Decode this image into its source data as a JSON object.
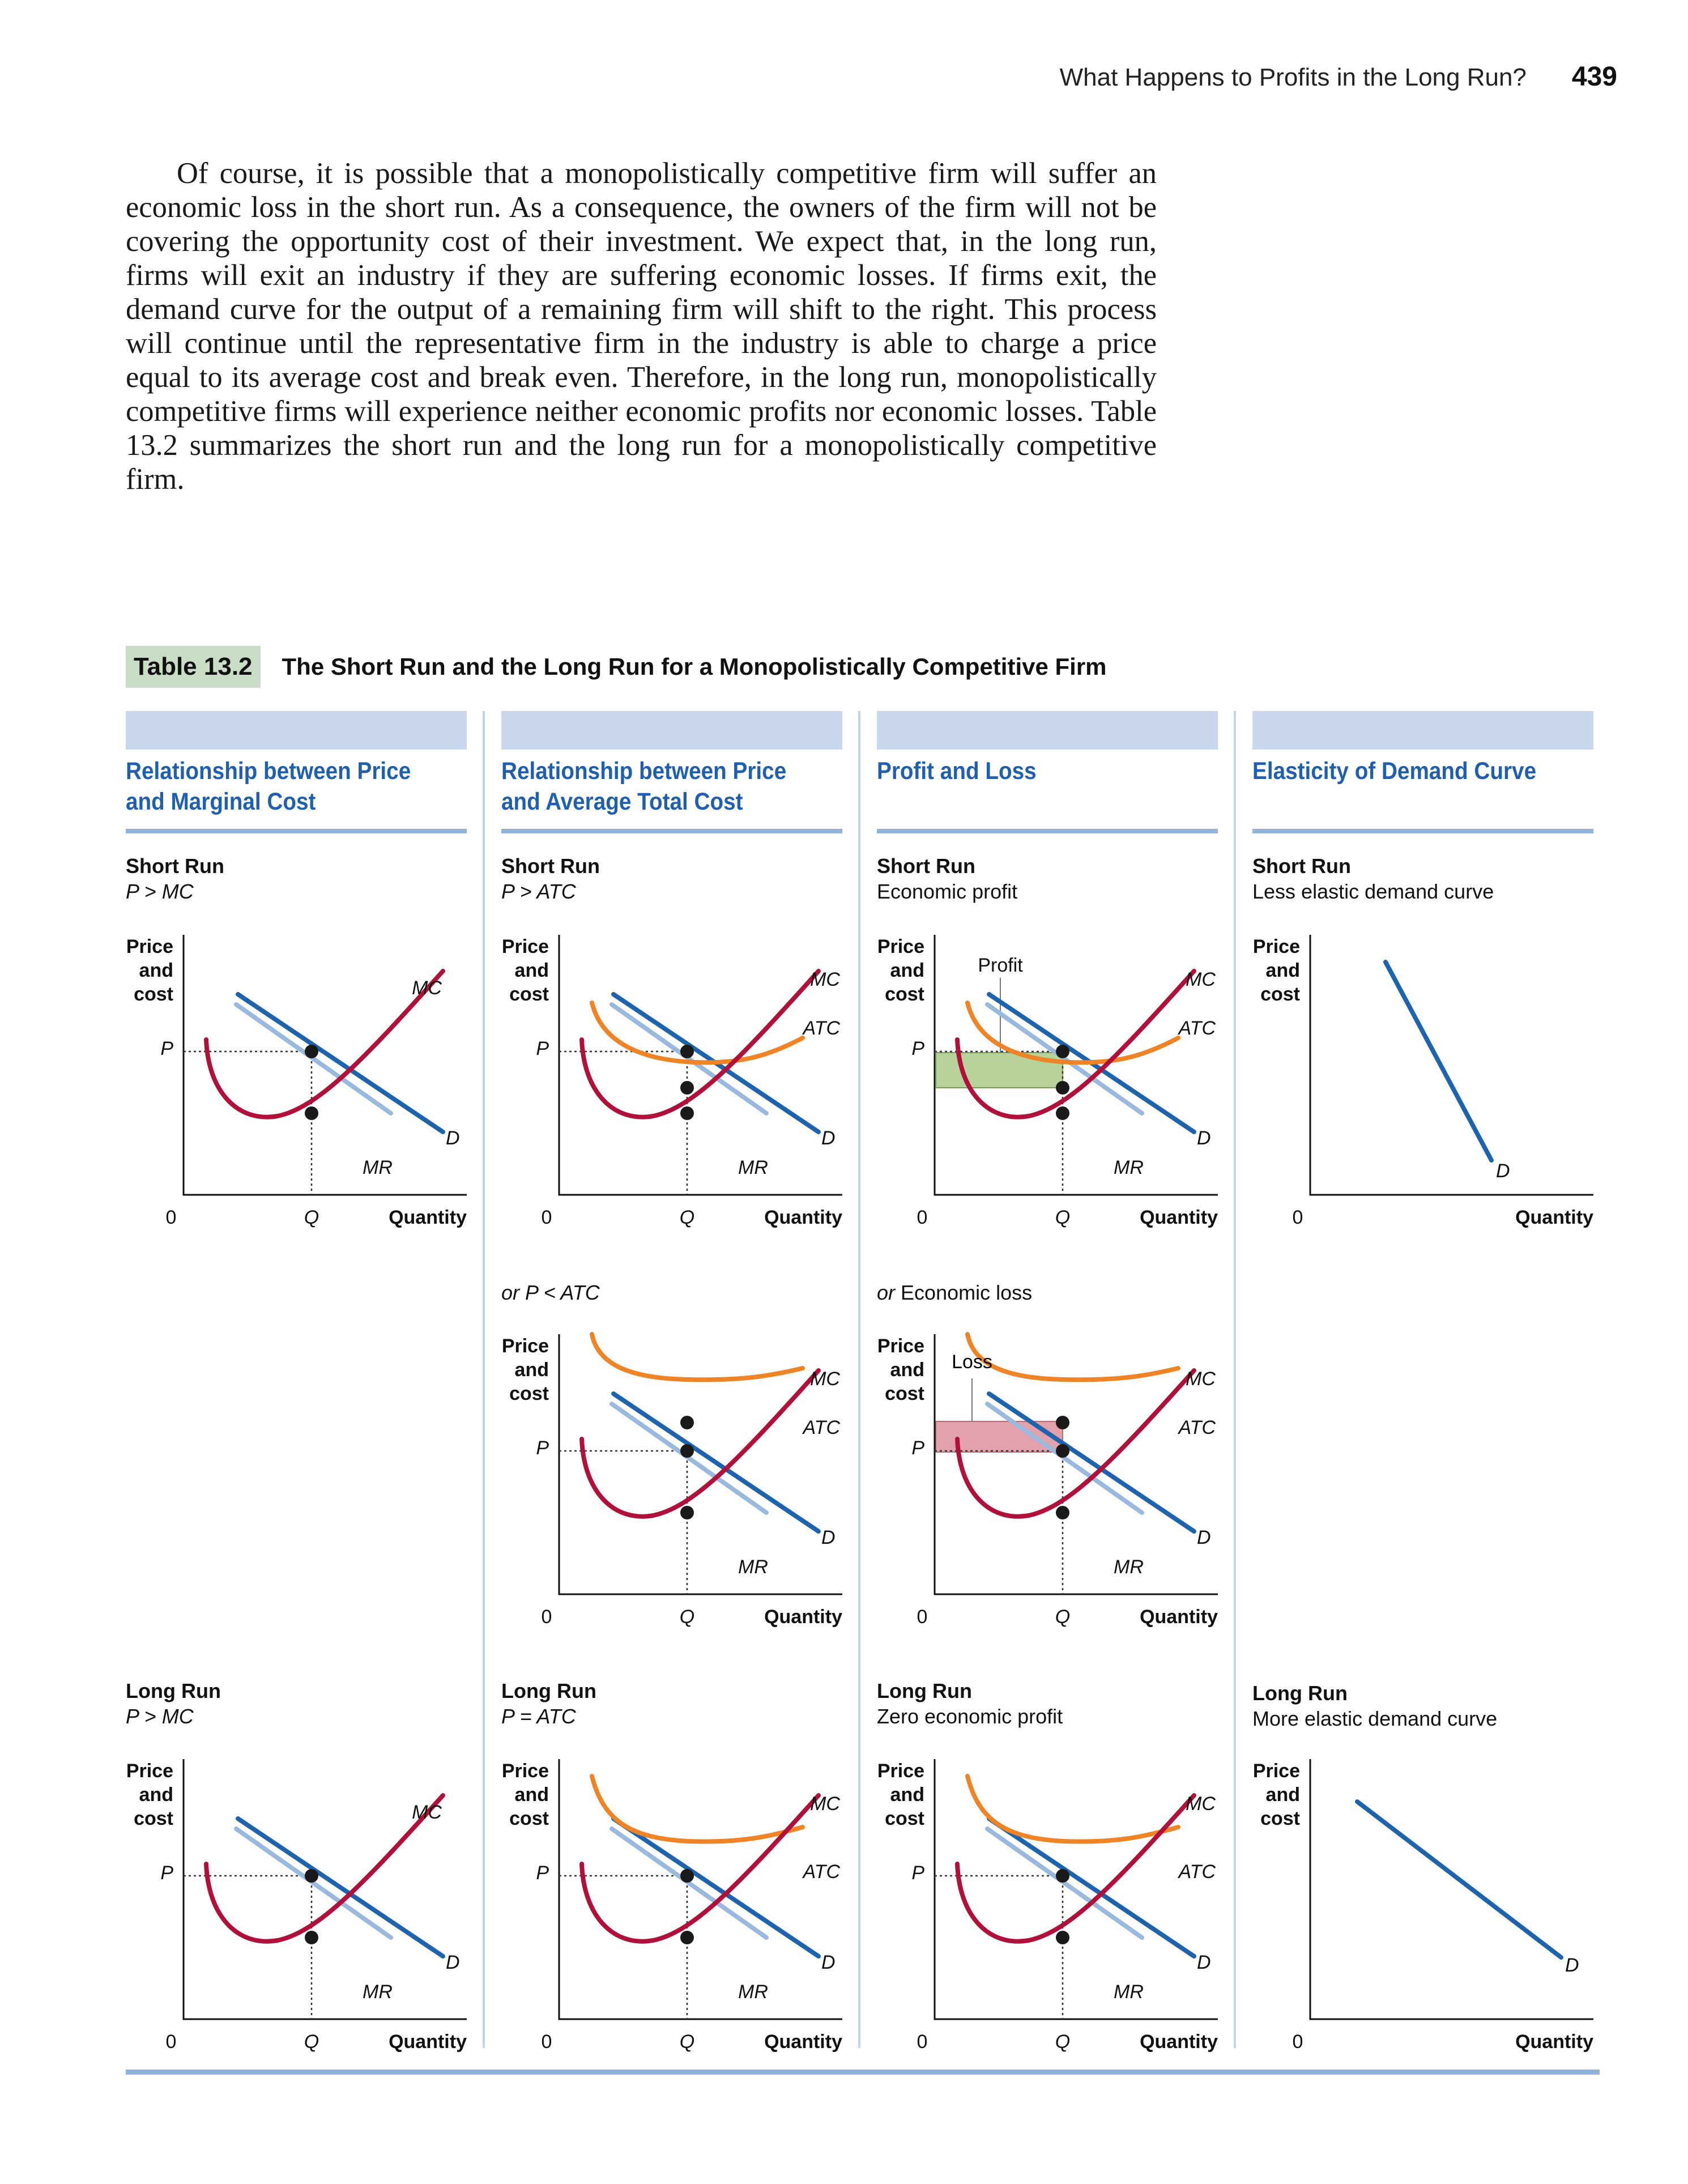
{
  "header": {
    "running_title": "What Happens to Profits in the Long Run?",
    "page_number": "439"
  },
  "body_text": "Of course, it is possible that a monopolistically competitive firm will suffer an economic loss in the short run. As a consequence, the owners of the firm will not be covering the opportunity cost of their investment. We expect that, in the long run, firms will exit an industry if they are suffering economic losses. If firms exit, the demand curve for the output of a remaining firm will shift to the right. This process will continue until the representative firm in the industry is able to charge a price equal to its average cost and break even. Therefore, in the long run, monopolistically competitive firms will experience neither economic profits nor economic losses. Table 13.2 summarizes the short run and the long run for a monopolistically competitive firm.",
  "table": {
    "label": "Table 13.2",
    "title": "The Short Run and the Long Run for a Monopolistically Competitive Firm",
    "columns": [
      "Relationship between Price\nand Marginal Cost",
      "Relationship between Price\nand Average Total Cost",
      "Profit and Loss",
      "Elasticity of Demand Curve"
    ]
  },
  "captions": {
    "c1_sr_title": "Short Run",
    "c1_sr_sub": "P > MC",
    "c2_sr_title": "Short Run",
    "c2_sr_sub": "P > ATC",
    "c3_sr_title": "Short Run",
    "c3_sr_sub": "Economic profit",
    "c4_sr_title": "Short Run",
    "c4_sr_sub": "Less elastic demand curve",
    "c2_alt_or": "or",
    "c2_alt_sub": "P < ATC",
    "c3_alt_or": "or",
    "c3_alt_sub": "Economic loss",
    "c1_lr_title": "Long Run",
    "c1_lr_sub": "P > MC",
    "c2_lr_title": "Long Run",
    "c2_lr_sub": "P = ATC",
    "c3_lr_title": "Long Run",
    "c3_lr_sub": "Zero economic profit",
    "c4_lr_title": "Long Run",
    "c4_lr_sub": "More elastic demand curve"
  },
  "chart_labels": {
    "y_axis": [
      "Price",
      "and",
      "cost"
    ],
    "x_axis": "Quantity",
    "origin": "0",
    "price": "P",
    "quantity": "Q",
    "mc": "MC",
    "atc": "ATC",
    "d": "D",
    "mr": "MR",
    "profit": "Profit",
    "loss": "Loss"
  },
  "colors": {
    "demand": "#1d63ad",
    "mr": "#9ab9df",
    "mc": "#b0103a",
    "atc": "#ee8426",
    "profit_area": "#b8d29c",
    "loss_area": "#e3a2ab",
    "heading": "#1f5fae",
    "band": "#c9d7ef",
    "rule": "#93b4da",
    "table_badge": "#c9dcc5"
  },
  "chart_data": [
    {
      "type": "line",
      "panel": "short-run-p-gt-mc",
      "title": "",
      "xlabel": "Quantity",
      "ylabel": "Price and cost",
      "series": [
        {
          "name": "MC"
        },
        {
          "name": "D"
        },
        {
          "name": "MR"
        }
      ]
    },
    {
      "type": "line",
      "panel": "short-run-p-gt-atc",
      "title": "",
      "xlabel": "Quantity",
      "ylabel": "Price and cost",
      "series": [
        {
          "name": "MC"
        },
        {
          "name": "ATC"
        },
        {
          "name": "D"
        },
        {
          "name": "MR"
        }
      ]
    },
    {
      "type": "line",
      "panel": "short-run-economic-profit",
      "title": "",
      "xlabel": "Quantity",
      "ylabel": "Price and cost",
      "series": [
        {
          "name": "MC"
        },
        {
          "name": "ATC"
        },
        {
          "name": "D"
        },
        {
          "name": "MR"
        }
      ],
      "annotations": [
        "Profit"
      ]
    },
    {
      "type": "line",
      "panel": "short-run-less-elastic-demand",
      "title": "",
      "xlabel": "Quantity",
      "ylabel": "Price and cost",
      "series": [
        {
          "name": "D"
        }
      ]
    },
    {
      "type": "line",
      "panel": "short-run-p-lt-atc",
      "title": "",
      "xlabel": "Quantity",
      "ylabel": "Price and cost",
      "series": [
        {
          "name": "MC"
        },
        {
          "name": "ATC"
        },
        {
          "name": "D"
        },
        {
          "name": "MR"
        }
      ]
    },
    {
      "type": "line",
      "panel": "short-run-economic-loss",
      "title": "",
      "xlabel": "Quantity",
      "ylabel": "Price and cost",
      "series": [
        {
          "name": "MC"
        },
        {
          "name": "ATC"
        },
        {
          "name": "D"
        },
        {
          "name": "MR"
        }
      ],
      "annotations": [
        "Loss"
      ]
    },
    {
      "type": "line",
      "panel": "long-run-p-gt-mc",
      "title": "",
      "xlabel": "Quantity",
      "ylabel": "Price and cost",
      "series": [
        {
          "name": "MC"
        },
        {
          "name": "D"
        },
        {
          "name": "MR"
        }
      ]
    },
    {
      "type": "line",
      "panel": "long-run-p-eq-atc",
      "title": "",
      "xlabel": "Quantity",
      "ylabel": "Price and cost",
      "series": [
        {
          "name": "MC"
        },
        {
          "name": "ATC"
        },
        {
          "name": "D"
        },
        {
          "name": "MR"
        }
      ]
    },
    {
      "type": "line",
      "panel": "long-run-zero-profit",
      "title": "",
      "xlabel": "Quantity",
      "ylabel": "Price and cost",
      "series": [
        {
          "name": "MC"
        },
        {
          "name": "ATC"
        },
        {
          "name": "D"
        },
        {
          "name": "MR"
        }
      ]
    },
    {
      "type": "line",
      "panel": "long-run-more-elastic-demand",
      "title": "",
      "xlabel": "Quantity",
      "ylabel": "Price and cost",
      "series": [
        {
          "name": "D"
        }
      ]
    }
  ]
}
